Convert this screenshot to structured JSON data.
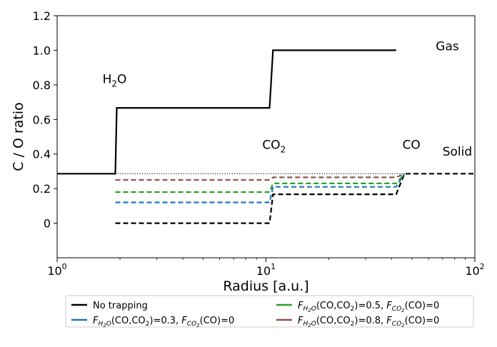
{
  "chart_data": {
    "type": "line",
    "title": "",
    "xlabel": "Radius [a.u.]",
    "ylabel": "C / O ratio",
    "xscale": "log",
    "xlim": [
      1,
      100
    ],
    "ylim": [
      -0.2,
      1.2
    ],
    "x_ticks": [
      {
        "value": 1,
        "base": "10",
        "exp": "0"
      },
      {
        "value": 10,
        "base": "10",
        "exp": "1"
      },
      {
        "value": 100,
        "base": "10",
        "exp": "2"
      }
    ],
    "y_ticks": [
      {
        "value": 0,
        "label": "0"
      },
      {
        "value": 0.2,
        "label": "0.2"
      },
      {
        "value": 0.4,
        "label": "0.4"
      },
      {
        "value": 0.6,
        "label": "0.6"
      },
      {
        "value": 0.8,
        "label": "0.8"
      },
      {
        "value": 1.0,
        "label": "1.0"
      },
      {
        "value": 1.2,
        "label": "1.2"
      }
    ],
    "grid": false,
    "legend_position": "bottom",
    "annotations": [
      {
        "main": "H",
        "sub": "2",
        "tail": "O",
        "x": 1.65,
        "y": 0.81
      },
      {
        "main": "CO",
        "sub": "2",
        "tail": "",
        "x": 9.6,
        "y": 0.43
      },
      {
        "main": "CO",
        "sub": "",
        "tail": "",
        "x": 45,
        "y": 0.43
      },
      {
        "main": "Gas",
        "sub": "",
        "tail": "",
        "x": 65,
        "y": 1.0
      },
      {
        "main": "Solid",
        "sub": "",
        "tail": "",
        "x": 70,
        "y": 0.39
      }
    ],
    "series": [
      {
        "id": "none-gas",
        "legend": "none",
        "color": "#000000",
        "dash": "solid",
        "x": [
          1.0,
          1.9,
          1.93,
          10.4,
          10.8,
          42
        ],
        "y": [
          0.286,
          0.286,
          0.667,
          0.667,
          1.0,
          1.0
        ]
      },
      {
        "id": "none-solid",
        "legend": "none",
        "color": "#000000",
        "dash": "dashed",
        "x": [
          1.9,
          10.4,
          10.8,
          42,
          46,
          100
        ],
        "y": [
          0.0,
          0.0,
          0.167,
          0.167,
          0.286,
          0.286
        ]
      },
      {
        "id": "f03",
        "legend": "f03",
        "color": "#1f77b4",
        "dash": "dashed",
        "x": [
          1.9,
          10.4,
          10.8,
          42,
          46
        ],
        "y": [
          0.12,
          0.12,
          0.21,
          0.21,
          0.286
        ]
      },
      {
        "id": "f05",
        "legend": "f05",
        "color": "#2ca02c",
        "dash": "dashed",
        "x": [
          1.9,
          10.4,
          10.8,
          42,
          46
        ],
        "y": [
          0.18,
          0.18,
          0.23,
          0.23,
          0.286
        ]
      },
      {
        "id": "f08",
        "legend": "f08",
        "color": "#8c564b",
        "dash": "dashed",
        "x": [
          1.9,
          10.4,
          10.8,
          42,
          46
        ],
        "y": [
          0.25,
          0.25,
          0.265,
          0.265,
          0.286
        ]
      },
      {
        "id": "dotted",
        "legend": "",
        "color": "#000000",
        "dash": "dotted",
        "x": [
          1.9,
          46
        ],
        "y": [
          0.286,
          0.286
        ]
      }
    ],
    "legend": [
      {
        "id": "none",
        "color": "#000000",
        "text": "No trapping",
        "f_h2o": "",
        "f_co2": ""
      },
      {
        "id": "f03",
        "color": "#1f77b4",
        "text": "",
        "f_h2o": "0.3",
        "f_co2": "0"
      },
      {
        "id": "f05",
        "color": "#2ca02c",
        "text": "",
        "f_h2o": "0.5",
        "f_co2": "0"
      },
      {
        "id": "f08",
        "color": "#8c564b",
        "text": "",
        "f_h2o": "0.8",
        "f_co2": "0"
      }
    ]
  }
}
